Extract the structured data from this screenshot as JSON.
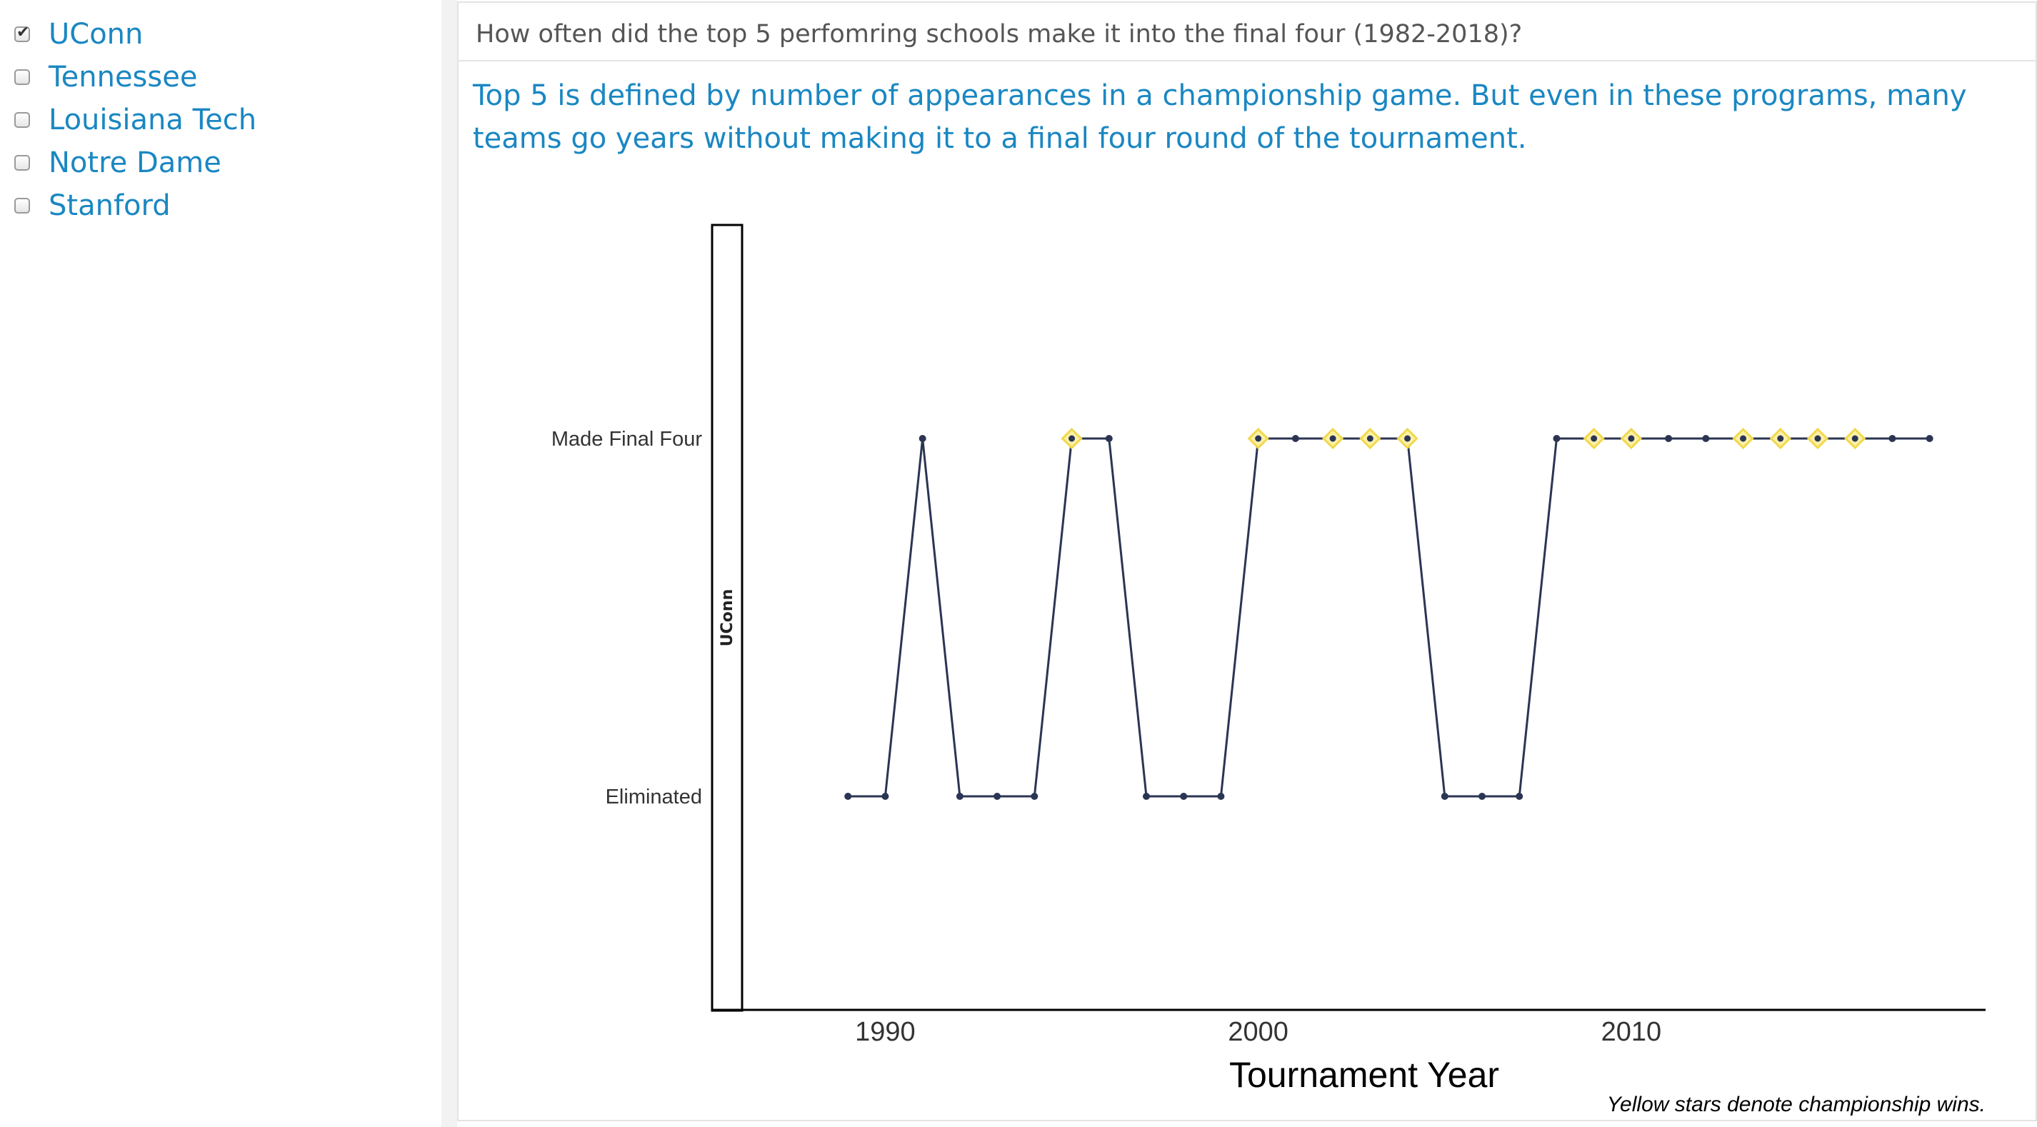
{
  "sidebar": {
    "options": [
      {
        "label": "UConn",
        "checked": true
      },
      {
        "label": "Tennessee",
        "checked": false
      },
      {
        "label": "Louisiana Tech",
        "checked": false
      },
      {
        "label": "Notre Dame",
        "checked": false
      },
      {
        "label": "Stanford",
        "checked": false
      }
    ]
  },
  "panel": {
    "header": "How often did the top 5 perfomring schools make it into the final four (1982-2018)?",
    "description": "Top 5 is defined by number of appearances in a championship game. But even in these programs, many teams go years without making it to a final four round of the tournament."
  },
  "chart_data": {
    "type": "line",
    "facet": "UConn",
    "xlabel": "Tournament Year",
    "ylabel": "",
    "x_ticks": [
      1990,
      2000,
      2010
    ],
    "xlim": [
      1986.2,
      2019.5
    ],
    "y_categories": [
      "Eliminated",
      "Made Final Four"
    ],
    "caption": "Yellow stars denote championship wins.",
    "colors": {
      "line": "#2b3553",
      "star": "#f2d84a",
      "point": "#2b3553"
    },
    "series": [
      {
        "x": [
          1989,
          1990,
          1991,
          1992,
          1993,
          1994,
          1995,
          1996,
          1997,
          1998,
          1999,
          2000,
          2001,
          2002,
          2003,
          2004,
          2005,
          2006,
          2007,
          2008,
          2009,
          2010,
          2011,
          2012,
          2013,
          2014,
          2015,
          2016,
          2017,
          2018
        ],
        "y": [
          0,
          0,
          1,
          0,
          0,
          0,
          1,
          1,
          0,
          0,
          0,
          1,
          1,
          1,
          1,
          1,
          0,
          0,
          0,
          1,
          1,
          1,
          1,
          1,
          1,
          1,
          1,
          1,
          1,
          1
        ],
        "championship": [
          false,
          false,
          false,
          false,
          false,
          false,
          true,
          false,
          false,
          false,
          false,
          true,
          false,
          true,
          true,
          true,
          false,
          false,
          false,
          false,
          true,
          true,
          false,
          false,
          true,
          true,
          true,
          true,
          false,
          false
        ]
      }
    ]
  }
}
